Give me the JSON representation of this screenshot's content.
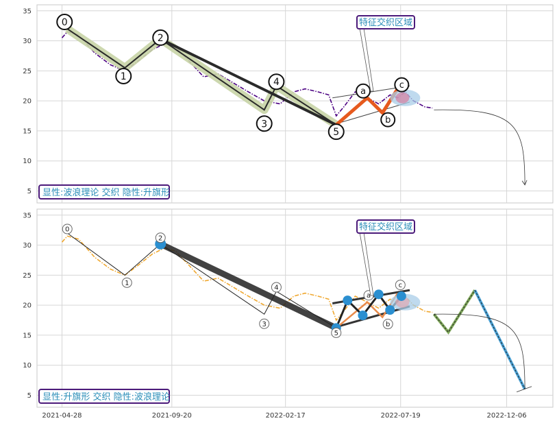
{
  "chart_data": [
    {
      "type": "line",
      "panel": "top",
      "ylim": [
        3,
        36
      ],
      "yticks": [
        5,
        10,
        15,
        20,
        25,
        30,
        35
      ],
      "xticks": [
        "2021-04-28",
        "2021-09-20",
        "2022-02-17",
        "2022-07-19",
        "2022-12-06"
      ],
      "grid": true,
      "caption": "显性:波浪理论 交织 隐性:升旗形",
      "annotation": "特征交织区域",
      "series": [
        {
          "name": "",
          "color": "#4b0082",
          "style": "dash-dot",
          "x": [
            "2021-04-28",
            "2021-05-05",
            "2021-05-20",
            "2021-06-10",
            "2021-07-01",
            "2021-07-20",
            "2021-08-05",
            "2021-08-25",
            "2021-09-10",
            "2021-09-25",
            "2021-10-10",
            "2021-11-01",
            "2021-11-20",
            "2021-12-10",
            "2021-12-30",
            "2022-01-20",
            "2022-02-10",
            "2022-02-28",
            "2022-03-15",
            "2022-04-01",
            "2022-04-15",
            "2022-04-25",
            "2022-05-05",
            "2022-05-20",
            "2022-06-05",
            "2022-06-20",
            "2022-07-05",
            "2022-07-15",
            "2022-07-25",
            "2022-08-05",
            "2022-08-20",
            "2022-08-30"
          ],
          "values": [
            30.5,
            31.5,
            31,
            28,
            26,
            25,
            26.5,
            28.5,
            29.5,
            29,
            27,
            24,
            24.5,
            23,
            21.5,
            20,
            19.5,
            21.5,
            22,
            21.5,
            21,
            17.5,
            19,
            21.5,
            20.5,
            19.5,
            21,
            20.5,
            21.5,
            20,
            19,
            18.8
          ]
        }
      ],
      "waves": {
        "points": [
          {
            "label": "0",
            "x": "2021-05-05",
            "y": 32
          },
          {
            "label": "1",
            "x": "2021-07-20",
            "y": 25.5
          },
          {
            "label": "2",
            "x": "2021-09-05",
            "y": 30.3
          },
          {
            "label": "3",
            "x": "2022-01-20",
            "y": 18.5
          },
          {
            "label": "4",
            "x": "2022-02-05",
            "y": 22.5
          },
          {
            "label": "5",
            "x": "2022-04-25",
            "y": 16
          }
        ],
        "abc": [
          {
            "label": "a",
            "x": "2022-06-05",
            "y": 20.5
          },
          {
            "label": "b",
            "x": "2022-06-25",
            "y": 18
          },
          {
            "label": "c",
            "x": "2022-07-15",
            "y": 22
          }
        ],
        "channel_upper": {
          "x": [
            "2022-04-20",
            "2022-07-31"
          ],
          "y": [
            20.5,
            22.5
          ]
        },
        "channel_lower": {
          "x": [
            "2022-04-20",
            "2022-07-31"
          ],
          "y": [
            16,
            19.8
          ]
        },
        "forecast_arrow": {
          "x": [
            "2022-09-01",
            "2022-12-30"
          ],
          "y": [
            18.5,
            6
          ]
        }
      }
    },
    {
      "type": "line",
      "panel": "bottom",
      "ylim": [
        3,
        36
      ],
      "yticks": [
        5,
        10,
        15,
        20,
        25,
        30,
        35
      ],
      "xticks": [
        "2021-04-28",
        "2021-09-20",
        "2022-02-17",
        "2022-07-19",
        "2022-12-06"
      ],
      "grid": true,
      "caption": "显性:升旗形 交织 隐性:波浪理论",
      "annotation": "特征交织区域",
      "series": [
        {
          "name": "",
          "color": "#f0a830",
          "style": "dash-dot",
          "x": [
            "2021-04-28",
            "2021-05-05",
            "2021-05-20",
            "2021-06-10",
            "2021-07-01",
            "2021-07-20",
            "2021-08-05",
            "2021-08-25",
            "2021-09-10",
            "2021-09-25",
            "2021-10-10",
            "2021-11-01",
            "2021-11-20",
            "2021-12-10",
            "2021-12-30",
            "2022-01-20",
            "2022-02-10",
            "2022-02-28",
            "2022-03-15",
            "2022-04-01",
            "2022-04-15",
            "2022-04-25",
            "2022-05-05",
            "2022-05-20",
            "2022-06-05",
            "2022-06-20",
            "2022-07-05",
            "2022-07-15",
            "2022-07-25",
            "2022-08-05",
            "2022-08-20",
            "2022-08-30"
          ],
          "values": [
            30.5,
            31.5,
            31,
            28,
            26,
            25,
            26.5,
            28.5,
            29.5,
            29,
            27,
            24,
            24.5,
            23,
            21.5,
            20,
            19.5,
            21.5,
            22,
            21.5,
            21,
            17.5,
            19,
            21.5,
            20.5,
            19.5,
            21,
            20.5,
            21.5,
            20,
            19,
            18.8
          ]
        }
      ],
      "waves": {
        "points": [
          {
            "label": "0",
            "x": "2021-05-05",
            "y": 32
          },
          {
            "label": "1",
            "x": "2021-07-20",
            "y": 25
          },
          {
            "label": "2",
            "x": "2021-09-05",
            "y": 30.2
          },
          {
            "label": "3",
            "x": "2022-01-20",
            "y": 18.5
          },
          {
            "label": "4",
            "x": "2022-02-05",
            "y": 22.3
          },
          {
            "label": "5",
            "x": "2022-04-25",
            "y": 16.2
          }
        ],
        "abc": [
          {
            "label": "a",
            "x": "2022-06-05",
            "y": 20.5
          },
          {
            "label": "b",
            "x": "2022-06-25",
            "y": 18
          },
          {
            "label": "c",
            "x": "2022-07-15",
            "y": 22
          }
        ],
        "flag_nodes": [
          {
            "x": "2022-04-25",
            "y": 16.2
          },
          {
            "x": "2022-05-10",
            "y": 20.8
          },
          {
            "x": "2022-05-30",
            "y": 18.3
          },
          {
            "x": "2022-06-20",
            "y": 21.8
          },
          {
            "x": "2022-07-05",
            "y": 19.2
          },
          {
            "x": "2022-07-20",
            "y": 21.5
          }
        ],
        "channel_upper": {
          "x": [
            "2022-04-20",
            "2022-07-31"
          ],
          "y": [
            20.3,
            22.5
          ]
        },
        "channel_lower": {
          "x": [
            "2022-04-20",
            "2022-07-31"
          ],
          "y": [
            16.2,
            19.8
          ]
        },
        "forecast_zigzag": {
          "x": [
            "2022-09-01",
            "2022-09-20",
            "2022-10-25",
            "2022-12-30"
          ],
          "y": [
            18.5,
            15.5,
            22.5,
            6
          ]
        },
        "forecast_arrow": {
          "x": [
            "2022-09-01",
            "2022-12-30"
          ],
          "y": [
            18.5,
            6
          ]
        }
      }
    }
  ]
}
